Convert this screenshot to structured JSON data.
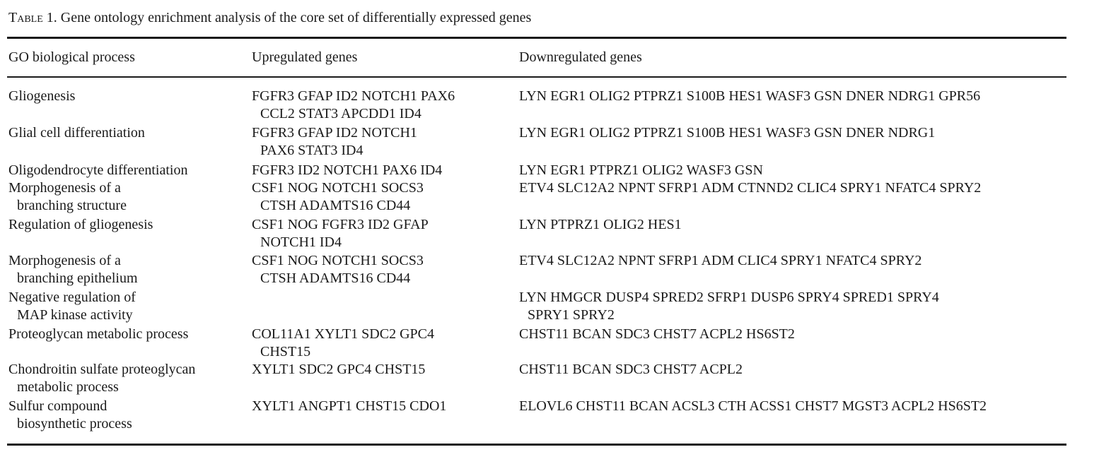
{
  "caption": {
    "label": "Table 1.",
    "text": "Gene ontology enrichment analysis of the core set of differentially expressed genes"
  },
  "headers": {
    "process": "GO biological process",
    "up": "Upregulated genes",
    "down": "Downregulated genes"
  },
  "rows": [
    {
      "process": [
        "Gliogenesis"
      ],
      "up": [
        "FGFR3 GFAP ID2 NOTCH1 PAX6",
        "CCL2 STAT3 APCDD1 ID4"
      ],
      "down": [
        "LYN EGR1 OLIG2 PTPRZ1 S100B HES1 WASF3 GSN DNER NDRG1 GPR56"
      ]
    },
    {
      "process": [
        "Glial cell differentiation"
      ],
      "up": [
        "FGFR3 GFAP ID2 NOTCH1",
        "PAX6 STAT3 ID4"
      ],
      "down": [
        "LYN EGR1 OLIG2 PTPRZ1 S100B HES1 WASF3 GSN DNER NDRG1"
      ]
    },
    {
      "process": [
        "Oligodendrocyte differentiation"
      ],
      "up": [
        "FGFR3 ID2 NOTCH1 PAX6 ID4"
      ],
      "down": [
        "LYN EGR1 PTPRZ1 OLIG2 WASF3 GSN"
      ]
    },
    {
      "process": [
        "Morphogenesis of a",
        "branching structure"
      ],
      "up": [
        "CSF1 NOG NOTCH1 SOCS3",
        "CTSH ADAMTS16 CD44"
      ],
      "down": [
        "ETV4 SLC12A2 NPNT SFRP1 ADM CTNND2 CLIC4 SPRY1 NFATC4 SPRY2"
      ]
    },
    {
      "process": [
        "Regulation of gliogenesis"
      ],
      "up": [
        "CSF1 NOG FGFR3 ID2 GFAP",
        "NOTCH1 ID4"
      ],
      "down": [
        "LYN PTPRZ1 OLIG2 HES1"
      ]
    },
    {
      "process": [
        "Morphogenesis of a",
        "branching epithelium"
      ],
      "up": [
        "CSF1 NOG NOTCH1 SOCS3",
        "CTSH ADAMTS16 CD44"
      ],
      "down": [
        "ETV4 SLC12A2 NPNT SFRP1 ADM CLIC4 SPRY1 NFATC4 SPRY2"
      ]
    },
    {
      "process": [
        "Negative regulation of",
        "MAP kinase activity"
      ],
      "up": [],
      "down": [
        "LYN HMGCR DUSP4 SPRED2 SFRP1 DUSP6 SPRY4 SPRED1 SPRY4",
        "SPRY1 SPRY2"
      ]
    },
    {
      "process": [
        "Proteoglycan metabolic process"
      ],
      "up": [
        "COL11A1 XYLT1 SDC2 GPC4",
        "CHST15"
      ],
      "down": [
        "CHST11 BCAN SDC3 CHST7 ACPL2 HS6ST2"
      ]
    },
    {
      "process": [
        "Chondroitin sulfate proteoglycan",
        "metabolic process"
      ],
      "up": [
        "XYLT1 SDC2 GPC4 CHST15"
      ],
      "down": [
        "CHST11 BCAN SDC3 CHST7 ACPL2"
      ]
    },
    {
      "process": [
        "Sulfur compound",
        "biosynthetic process"
      ],
      "up": [
        "XYLT1 ANGPT1 CHST15 CDO1"
      ],
      "down": [
        "ELOVL6 CHST11 BCAN ACSL3 CTH ACSS1 CHST7 MGST3 ACPL2 HS6ST2"
      ]
    }
  ]
}
